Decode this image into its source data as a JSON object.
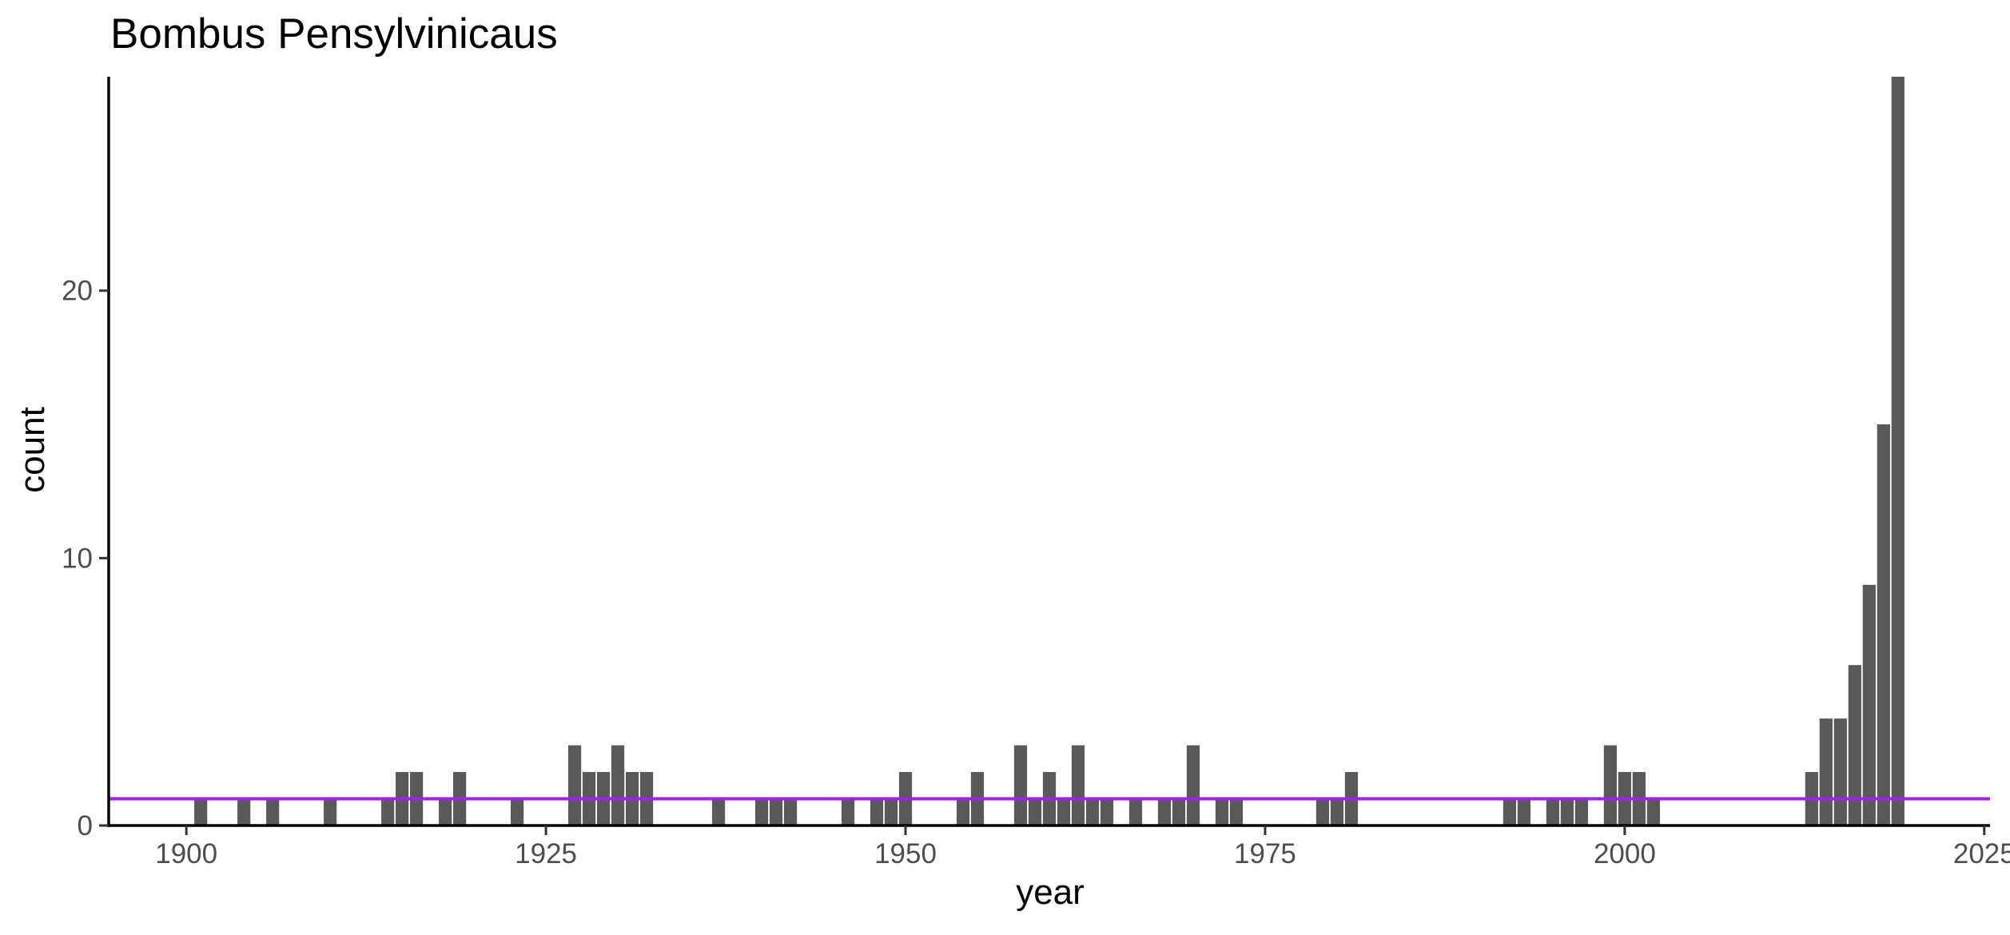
{
  "chart_data": {
    "type": "bar",
    "title": "Bombus Pensylvinicaus",
    "xlabel": "year",
    "ylabel": "count",
    "xlim": [
      1894.6,
      2025.4
    ],
    "ylim": [
      0,
      28
    ],
    "x_ticks": [
      "1900",
      "1925",
      "1950",
      "1975",
      "2000",
      "2025"
    ],
    "x_tick_values": [
      1900,
      1925,
      1950,
      1975,
      2000,
      2025
    ],
    "y_ticks": [
      "0",
      "10",
      "20"
    ],
    "y_tick_values": [
      0,
      10,
      20
    ],
    "grid": false,
    "bar_color": "#595959",
    "reference_line": {
      "y": 1,
      "color": "#a020f0"
    },
    "x": [
      1901,
      1904,
      1906,
      1910,
      1914,
      1915,
      1916,
      1918,
      1919,
      1923,
      1927,
      1928,
      1929,
      1930,
      1931,
      1932,
      1937,
      1940,
      1941,
      1942,
      1946,
      1948,
      1949,
      1950,
      1954,
      1955,
      1958,
      1959,
      1960,
      1961,
      1962,
      1963,
      1964,
      1966,
      1968,
      1969,
      1970,
      1972,
      1973,
      1979,
      1980,
      1981,
      1992,
      1993,
      1995,
      1996,
      1997,
      1999,
      2000,
      2001,
      2002,
      2013,
      2014,
      2015,
      2016,
      2017,
      2018,
      2019
    ],
    "values": [
      1,
      1,
      1,
      1,
      1,
      2,
      2,
      1,
      2,
      1,
      3,
      2,
      2,
      3,
      2,
      2,
      1,
      1,
      1,
      1,
      1,
      1,
      1,
      2,
      1,
      2,
      3,
      1,
      2,
      1,
      3,
      1,
      1,
      1,
      1,
      1,
      3,
      1,
      1,
      1,
      1,
      2,
      1,
      1,
      1,
      1,
      1,
      3,
      2,
      2,
      1,
      2,
      4,
      4,
      6,
      9,
      15,
      28
    ]
  }
}
